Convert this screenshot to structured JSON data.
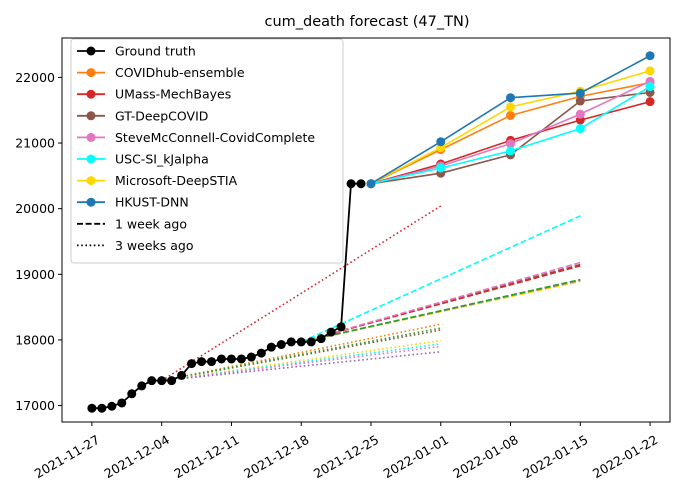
{
  "chart_data": {
    "type": "line",
    "title": "cum_death forecast (47_TN)",
    "xlabel": "",
    "ylabel": "",
    "x_ticks": [
      "2021-11-27",
      "2021-12-04",
      "2021-12-11",
      "2021-12-18",
      "2021-12-25",
      "2022-01-01",
      "2022-01-08",
      "2022-01-15",
      "2022-01-22"
    ],
    "y_ticks": [
      17000,
      18000,
      19000,
      20000,
      21000,
      22000
    ],
    "xlim": [
      "2021-11-24",
      "2022-01-24"
    ],
    "ylim": [
      16750,
      22600
    ],
    "grid": false,
    "legend_position": "top-left",
    "legend": [
      {
        "label": "Ground truth",
        "color": "#000000",
        "style": "solid",
        "marker": true
      },
      {
        "label": "COVIDhub-ensemble",
        "color": "#ff7f0e",
        "style": "solid",
        "marker": true
      },
      {
        "label": "UMass-MechBayes",
        "color": "#d62728",
        "style": "solid",
        "marker": true
      },
      {
        "label": "GT-DeepCOVID",
        "color": "#8c564b",
        "style": "solid",
        "marker": true
      },
      {
        "label": "SteveMcConnell-CovidComplete",
        "color": "#e377c2",
        "style": "solid",
        "marker": true
      },
      {
        "label": "USC-SI_kJalpha",
        "color": "#00ffff",
        "style": "solid",
        "marker": true
      },
      {
        "label": "Microsoft-DeepSTIA",
        "color": "#ffd700",
        "style": "solid",
        "marker": true
      },
      {
        "label": "HKUST-DNN",
        "color": "#1f77b4",
        "style": "solid",
        "marker": true
      },
      {
        "label": "1 week ago",
        "color": "#000000",
        "style": "dashed",
        "marker": false
      },
      {
        "label": "3 weeks ago",
        "color": "#000000",
        "style": "dotted",
        "marker": false
      }
    ],
    "ground_truth": {
      "color": "#000000",
      "points": [
        [
          "2021-11-27",
          16960
        ],
        [
          "2021-11-28",
          16960
        ],
        [
          "2021-11-29",
          16990
        ],
        [
          "2021-11-30",
          17040
        ],
        [
          "2021-12-01",
          17180
        ],
        [
          "2021-12-02",
          17300
        ],
        [
          "2021-12-03",
          17380
        ],
        [
          "2021-12-04",
          17380
        ],
        [
          "2021-12-05",
          17380
        ],
        [
          "2021-12-06",
          17460
        ],
        [
          "2021-12-07",
          17640
        ],
        [
          "2021-12-08",
          17670
        ],
        [
          "2021-12-09",
          17670
        ],
        [
          "2021-12-10",
          17710
        ],
        [
          "2021-12-11",
          17710
        ],
        [
          "2021-12-12",
          17710
        ],
        [
          "2021-12-13",
          17740
        ],
        [
          "2021-12-14",
          17800
        ],
        [
          "2021-12-15",
          17890
        ],
        [
          "2021-12-16",
          17930
        ],
        [
          "2021-12-17",
          17970
        ],
        [
          "2021-12-18",
          17970
        ],
        [
          "2021-12-19",
          17970
        ],
        [
          "2021-12-20",
          18020
        ],
        [
          "2021-12-21",
          18120
        ],
        [
          "2021-12-22",
          18200
        ],
        [
          "2021-12-23",
          20380
        ],
        [
          "2021-12-24",
          20380
        ]
      ]
    },
    "forecasts_current": [
      {
        "name": "COVIDhub-ensemble",
        "color": "#ff7f0e",
        "points": [
          [
            "2021-12-25",
            20380
          ],
          [
            "2022-01-01",
            20900
          ],
          [
            "2022-01-08",
            21420
          ],
          [
            "2022-01-15",
            21710
          ],
          [
            "2022-01-22",
            21920
          ]
        ]
      },
      {
        "name": "UMass-MechBayes",
        "color": "#d62728",
        "points": [
          [
            "2021-12-25",
            20380
          ],
          [
            "2022-01-01",
            20680
          ],
          [
            "2022-01-08",
            21040
          ],
          [
            "2022-01-15",
            21350
          ],
          [
            "2022-01-22",
            21630
          ]
        ]
      },
      {
        "name": "GT-DeepCOVID",
        "color": "#8c564b",
        "points": [
          [
            "2021-12-25",
            20380
          ],
          [
            "2022-01-01",
            20540
          ],
          [
            "2022-01-08",
            20820
          ],
          [
            "2022-01-15",
            21640
          ],
          [
            "2022-01-22",
            21770
          ]
        ]
      },
      {
        "name": "SteveMcConnell-CovidComplete",
        "color": "#e377c2",
        "points": [
          [
            "2021-12-25",
            20380
          ],
          [
            "2022-01-01",
            20650
          ],
          [
            "2022-01-08",
            20990
          ],
          [
            "2022-01-15",
            21440
          ],
          [
            "2022-01-22",
            21940
          ]
        ]
      },
      {
        "name": "USC-SI_kJalpha",
        "color": "#00ffff",
        "points": [
          [
            "2021-12-25",
            20380
          ],
          [
            "2022-01-01",
            20620
          ],
          [
            "2022-01-08",
            20880
          ],
          [
            "2022-01-15",
            21220
          ],
          [
            "2022-01-22",
            21860
          ]
        ]
      },
      {
        "name": "Microsoft-DeepSTIA",
        "color": "#ffd700",
        "points": [
          [
            "2021-12-25",
            20380
          ],
          [
            "2022-01-01",
            20930
          ],
          [
            "2022-01-08",
            21550
          ],
          [
            "2022-01-15",
            21790
          ],
          [
            "2022-01-22",
            22100
          ]
        ]
      },
      {
        "name": "HKUST-DNN",
        "color": "#1f77b4",
        "points": [
          [
            "2021-12-25",
            20380
          ],
          [
            "2022-01-01",
            21020
          ],
          [
            "2022-01-08",
            21690
          ],
          [
            "2022-01-15",
            21760
          ],
          [
            "2022-01-22",
            22330
          ]
        ]
      }
    ],
    "forecasts_1_week_ago": [
      {
        "color": "#8c564b",
        "points": [
          [
            "2021-12-18",
            17970
          ],
          [
            "2022-01-15",
            19150
          ]
        ]
      },
      {
        "color": "#d62728",
        "points": [
          [
            "2021-12-18",
            17970
          ],
          [
            "2022-01-15",
            19130
          ]
        ]
      },
      {
        "color": "#e377c2",
        "points": [
          [
            "2021-12-18",
            17970
          ],
          [
            "2022-01-15",
            19180
          ]
        ]
      },
      {
        "color": "#ff7f0e",
        "points": [
          [
            "2021-12-18",
            17970
          ],
          [
            "2022-01-15",
            18900
          ]
        ]
      },
      {
        "color": "#ffd700",
        "points": [
          [
            "2021-12-18",
            17970
          ],
          [
            "2022-01-15",
            18890
          ]
        ]
      },
      {
        "color": "#9467bd",
        "points": [
          [
            "2021-12-18",
            17970
          ],
          [
            "2022-01-15",
            18910
          ]
        ]
      },
      {
        "color": "#2ca02c",
        "points": [
          [
            "2021-12-18",
            17970
          ],
          [
            "2022-01-15",
            18920
          ]
        ]
      },
      {
        "color": "#00ffff",
        "points": [
          [
            "2021-12-18",
            17970
          ],
          [
            "2022-01-15",
            19890
          ]
        ]
      }
    ],
    "forecasts_3_weeks_ago": [
      {
        "color": "#d62728",
        "points": [
          [
            "2021-12-04",
            17380
          ],
          [
            "2022-01-01",
            20040
          ]
        ]
      },
      {
        "color": "#ff7f0e",
        "points": [
          [
            "2021-12-04",
            17380
          ],
          [
            "2022-01-01",
            18240
          ]
        ]
      },
      {
        "color": "#8c564b",
        "points": [
          [
            "2021-12-04",
            17380
          ],
          [
            "2022-01-01",
            18150
          ]
        ]
      },
      {
        "color": "#2ca02c",
        "points": [
          [
            "2021-12-04",
            17380
          ],
          [
            "2022-01-01",
            18180
          ]
        ]
      },
      {
        "color": "#ffd700",
        "points": [
          [
            "2021-12-04",
            17380
          ],
          [
            "2022-01-01",
            17990
          ]
        ]
      },
      {
        "color": "#00ffff",
        "points": [
          [
            "2021-12-04",
            17380
          ],
          [
            "2022-01-01",
            17940
          ]
        ]
      },
      {
        "color": "#e377c2",
        "points": [
          [
            "2021-12-04",
            17380
          ],
          [
            "2022-01-01",
            17900
          ]
        ]
      },
      {
        "color": "#9467bd",
        "points": [
          [
            "2021-12-04",
            17380
          ],
          [
            "2022-01-01",
            17820
          ]
        ]
      }
    ]
  }
}
